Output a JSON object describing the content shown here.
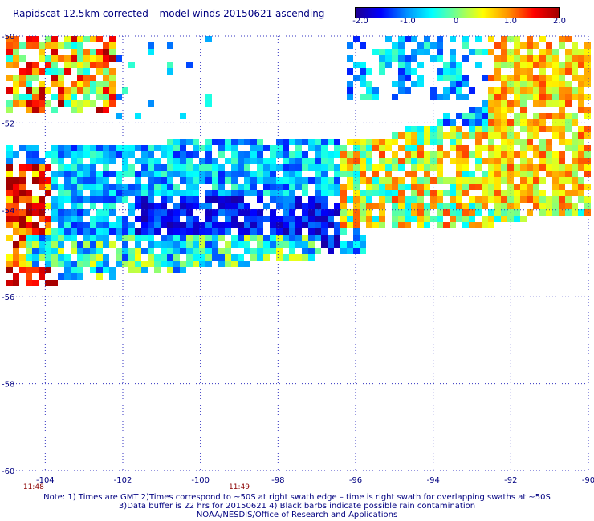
{
  "title": "Rapidscat 12.5km corrected – model winds 20150621 ascending",
  "colorbar": {
    "labels": [
      "-2.0",
      "-1.0",
      "0",
      "1.0",
      "2.0"
    ],
    "min": -2.0,
    "max": 2.0,
    "colors": [
      "#1e0090",
      "#0000ff",
      "#0090ff",
      "#00ffff",
      "#80ff80",
      "#ffff00",
      "#ff9000",
      "#ff0000",
      "#a00000"
    ]
  },
  "map": {
    "lon_range": [
      -105,
      -90
    ],
    "lat_range": [
      -60,
      -50
    ],
    "lon_ticks": [
      "-104",
      "-102",
      "-100",
      "-98",
      "-96",
      "-94",
      "-92",
      "-90"
    ],
    "lat_ticks": [
      "-50",
      "-52",
      "-54",
      "-56",
      "-58",
      "-60"
    ],
    "time_labels": [
      {
        "text": "11:48",
        "lon": -104.3
      },
      {
        "text": "11:49",
        "lon": -99.0
      }
    ],
    "grid": "dotted"
  },
  "notes": [
    "Note: 1) Times are GMT 2)Times correspond to ~50S at right swath edge – time is right swath for overlapping swaths at ~50S",
    "3)Data buffer is 22 hrs for 20150621 4) Black barbs indicate possible rain contamination",
    "NOAA/NESDIS/Office of Research and Applications"
  ]
}
